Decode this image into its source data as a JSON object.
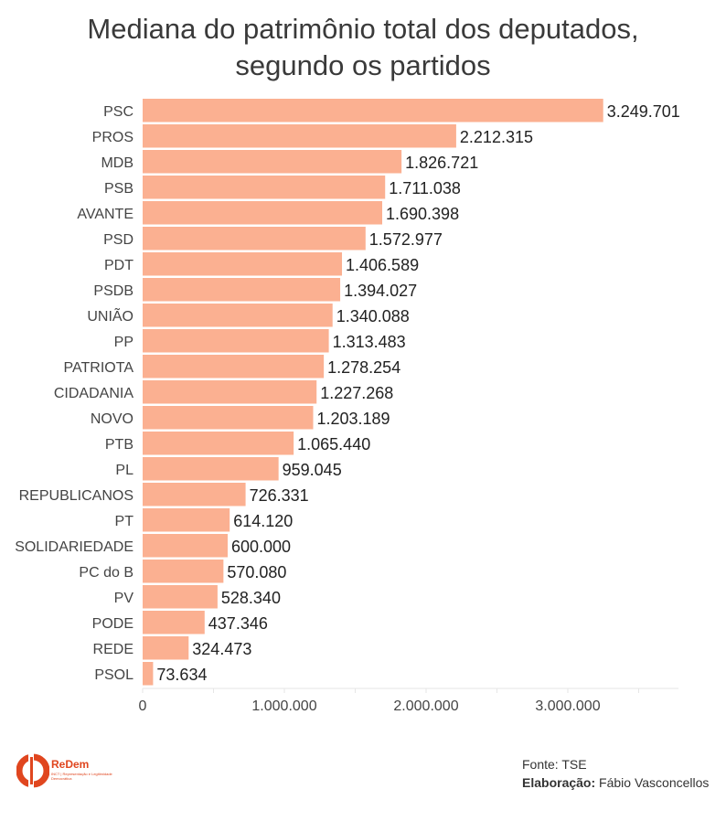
{
  "title_line1": "Mediana do patrimônio total dos deputados,",
  "title_line2": "segundo os partidos",
  "chart_data": {
    "type": "bar",
    "orientation": "horizontal",
    "title": "Mediana do patrimônio total dos deputados, segundo os partidos",
    "categories": [
      "PSC",
      "PROS",
      "MDB",
      "PSB",
      "AVANTE",
      "PSD",
      "PDT",
      "PSDB",
      "UNIÃO",
      "PP",
      "PATRIOTA",
      "CIDADANIA",
      "NOVO",
      "PTB",
      "PL",
      "REPUBLICANOS",
      "PT",
      "SOLIDARIEDADE",
      "PC do B",
      "PV",
      "PODE",
      "REDE",
      "PSOL"
    ],
    "values": [
      3249701,
      2212315,
      1826721,
      1711038,
      1690398,
      1572977,
      1406589,
      1394027,
      1340088,
      1313483,
      1278254,
      1227268,
      1203189,
      1065440,
      959045,
      726331,
      614120,
      600000,
      570080,
      528340,
      437346,
      324473,
      73634
    ],
    "value_labels": [
      "3.249.701",
      "2.212.315",
      "1.826.721",
      "1.711.038",
      "1.690.398",
      "1.572.977",
      "1.406.589",
      "1.394.027",
      "1.340.088",
      "1.313.483",
      "1.278.254",
      "1.227.268",
      "1.203.189",
      "1.065.440",
      "959.045",
      "726.331",
      "614.120",
      "600.000",
      "570.080",
      "528.340",
      "437.346",
      "324.473",
      "73.634"
    ],
    "xticks": [
      0,
      1000000,
      2000000,
      3000000
    ],
    "xtick_labels": [
      "0",
      "1.000.000",
      "2.000.000",
      "3.000.000"
    ],
    "xlim": [
      0,
      3800000
    ],
    "bar_color": "#fbb091",
    "grid": false
  },
  "footer": {
    "source_label": "Fonte:",
    "source_value": "TSE",
    "author_label": "Elaboração:",
    "author_value": "Fábio Vasconcellos"
  },
  "logo": {
    "name": "ReDem",
    "subtitle": "INCT | Representação e Legitimidade Democrática",
    "color": "#e0461f"
  }
}
